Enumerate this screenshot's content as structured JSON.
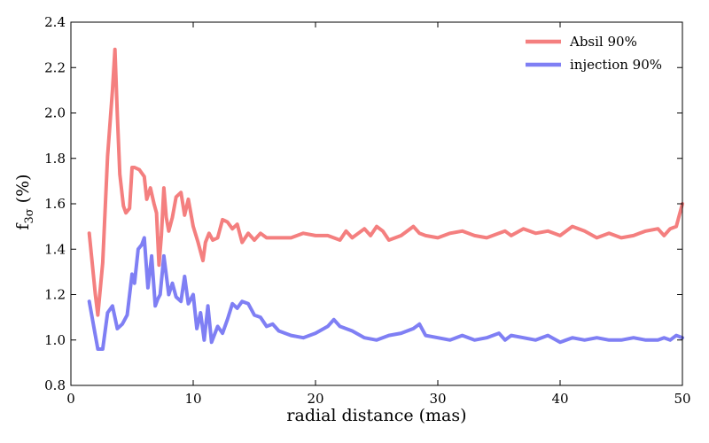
{
  "chart_data": {
    "type": "line",
    "title": "",
    "xlabel": "radial distance (mas)",
    "ylabel_main": "f",
    "ylabel_sub": "3σ",
    "ylabel_rest": " (%)",
    "xlim": [
      0,
      50
    ],
    "ylim": [
      0.8,
      2.4
    ],
    "xticks": [
      0,
      10,
      20,
      30,
      40,
      50
    ],
    "xtick_labels": [
      "0",
      "10",
      "20",
      "30",
      "40",
      "50"
    ],
    "yticks": [
      0.8,
      1.0,
      1.2,
      1.4,
      1.6,
      1.8,
      2.0,
      2.2,
      2.4
    ],
    "ytick_labels": [
      "0.8",
      "1.0",
      "1.2",
      "1.4",
      "1.6",
      "1.8",
      "2.0",
      "2.2",
      "2.4"
    ],
    "grid": false,
    "legend_position": "top-right",
    "series": [
      {
        "name": "Absil 90%",
        "color": "#f47f7f",
        "x": [
          1.5,
          2.0,
          2.2,
          2.6,
          3.0,
          3.4,
          3.6,
          3.8,
          4.0,
          4.3,
          4.5,
          4.8,
          5.0,
          5.2,
          5.6,
          6.0,
          6.2,
          6.5,
          6.8,
          7.0,
          7.2,
          7.4,
          7.6,
          7.8,
          8.0,
          8.3,
          8.6,
          9.0,
          9.3,
          9.6,
          10.0,
          10.4,
          10.8,
          11.0,
          11.3,
          11.6,
          12.0,
          12.4,
          12.8,
          13.2,
          13.6,
          14.0,
          14.5,
          15.0,
          15.5,
          16.0,
          17.0,
          18.0,
          19.0,
          20.0,
          21.0,
          22.0,
          22.5,
          23.0,
          23.5,
          24.0,
          24.5,
          25.0,
          25.5,
          26.0,
          27.0,
          28.0,
          28.5,
          29.0,
          30.0,
          31.0,
          32.0,
          33.0,
          34.0,
          35.0,
          35.5,
          36.0,
          37.0,
          38.0,
          39.0,
          40.0,
          41.0,
          42.0,
          43.0,
          44.0,
          45.0,
          46.0,
          46.5,
          47.0,
          48.0,
          48.5,
          49.0,
          49.5,
          50.0
        ],
        "values": [
          1.47,
          1.2,
          1.11,
          1.34,
          1.81,
          2.1,
          2.28,
          1.99,
          1.73,
          1.59,
          1.56,
          1.58,
          1.76,
          1.76,
          1.75,
          1.72,
          1.62,
          1.67,
          1.6,
          1.56,
          1.33,
          1.46,
          1.67,
          1.54,
          1.48,
          1.54,
          1.63,
          1.65,
          1.55,
          1.62,
          1.5,
          1.43,
          1.35,
          1.43,
          1.47,
          1.44,
          1.45,
          1.53,
          1.52,
          1.49,
          1.51,
          1.43,
          1.47,
          1.44,
          1.47,
          1.45,
          1.45,
          1.45,
          1.47,
          1.46,
          1.46,
          1.44,
          1.48,
          1.45,
          1.47,
          1.49,
          1.46,
          1.5,
          1.48,
          1.44,
          1.46,
          1.5,
          1.47,
          1.46,
          1.45,
          1.47,
          1.48,
          1.46,
          1.45,
          1.47,
          1.48,
          1.46,
          1.49,
          1.47,
          1.48,
          1.46,
          1.5,
          1.48,
          1.45,
          1.47,
          1.45,
          1.46,
          1.47,
          1.48,
          1.49,
          1.46,
          1.49,
          1.5,
          1.6
        ]
      },
      {
        "name": "injection 90%",
        "color": "#7f7ff4",
        "x": [
          1.5,
          2.0,
          2.2,
          2.6,
          3.0,
          3.4,
          3.8,
          4.2,
          4.6,
          5.0,
          5.2,
          5.5,
          5.8,
          6.0,
          6.3,
          6.6,
          6.9,
          7.1,
          7.3,
          7.6,
          8.0,
          8.3,
          8.6,
          9.0,
          9.3,
          9.6,
          10.0,
          10.3,
          10.6,
          10.9,
          11.2,
          11.5,
          12.0,
          12.4,
          12.8,
          13.2,
          13.6,
          14.0,
          14.5,
          15.0,
          15.5,
          16.0,
          16.5,
          17.0,
          18.0,
          19.0,
          20.0,
          21.0,
          21.5,
          22.0,
          23.0,
          24.0,
          25.0,
          26.0,
          27.0,
          28.0,
          28.5,
          29.0,
          30.0,
          31.0,
          32.0,
          33.0,
          34.0,
          35.0,
          35.5,
          36.0,
          37.0,
          38.0,
          39.0,
          40.0,
          41.0,
          42.0,
          43.0,
          44.0,
          45.0,
          46.0,
          47.0,
          48.0,
          48.5,
          49.0,
          49.5,
          50.0
        ],
        "values": [
          1.17,
          1.02,
          0.96,
          0.96,
          1.12,
          1.15,
          1.05,
          1.07,
          1.11,
          1.29,
          1.25,
          1.4,
          1.42,
          1.45,
          1.23,
          1.37,
          1.15,
          1.18,
          1.2,
          1.37,
          1.2,
          1.25,
          1.19,
          1.17,
          1.28,
          1.16,
          1.2,
          1.05,
          1.12,
          1.0,
          1.15,
          0.99,
          1.06,
          1.03,
          1.09,
          1.16,
          1.14,
          1.17,
          1.16,
          1.11,
          1.1,
          1.06,
          1.07,
          1.04,
          1.02,
          1.01,
          1.03,
          1.06,
          1.09,
          1.06,
          1.04,
          1.01,
          1.0,
          1.02,
          1.03,
          1.05,
          1.07,
          1.02,
          1.01,
          1.0,
          1.02,
          1.0,
          1.01,
          1.03,
          1.0,
          1.02,
          1.01,
          1.0,
          1.02,
          0.99,
          1.01,
          1.0,
          1.01,
          1.0,
          1.0,
          1.01,
          1.0,
          1.0,
          1.01,
          1.0,
          1.02,
          1.01
        ]
      }
    ]
  }
}
